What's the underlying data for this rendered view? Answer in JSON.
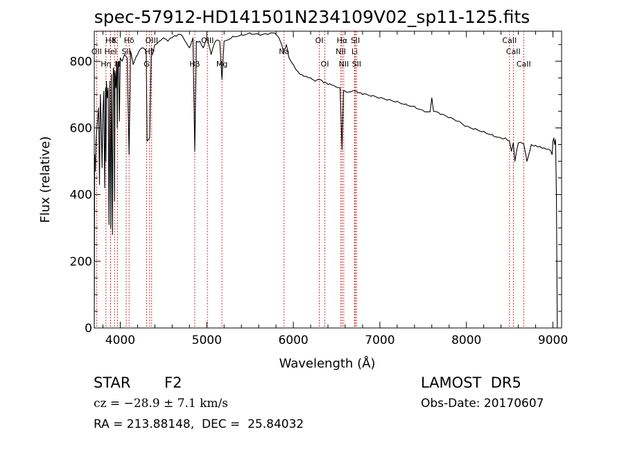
{
  "chart_data": {
    "type": "line",
    "title": "spec-57912-HD141501N234109V02_sp11-125.fits",
    "xlabel": "Wavelength (Å)",
    "ylabel": "Flux (relative)",
    "xlim": [
      3700,
      9100
    ],
    "ylim": [
      0,
      890
    ],
    "xticks": [
      4000,
      5000,
      6000,
      7000,
      8000,
      9000
    ],
    "yticks": [
      0,
      200,
      400,
      600,
      800
    ],
    "grid": false,
    "series": [
      {
        "line_color": "#000000",
        "x": [
          3700,
          3705,
          3712,
          3720,
          3730,
          3740,
          3750,
          3760,
          3770,
          3780,
          3790,
          3800,
          3810,
          3820,
          3830,
          3835,
          3840,
          3850,
          3860,
          3870,
          3880,
          3890,
          3900,
          3910,
          3920,
          3930,
          3934,
          3940,
          3950,
          3960,
          3965,
          3970,
          3980,
          3990,
          4000,
          4020,
          4050,
          4080,
          4102,
          4120,
          4150,
          4200,
          4250,
          4300,
          4310,
          4340,
          4360,
          4380,
          4400,
          4450,
          4500,
          4550,
          4600,
          4650,
          4700,
          4750,
          4800,
          4840,
          4861,
          4880,
          4920,
          4960,
          5000,
          5050,
          5100,
          5150,
          5175,
          5200,
          5300,
          5400,
          5500,
          5600,
          5700,
          5750,
          5800,
          5850,
          5890,
          5920,
          5950,
          6000,
          6050,
          6100,
          6150,
          6200,
          6250,
          6300,
          6350,
          6400,
          6450,
          6500,
          6540,
          6563,
          6580,
          6600,
          6650,
          6700,
          6750,
          6800,
          6900,
          7000,
          7100,
          7200,
          7300,
          7400,
          7500,
          7580,
          7600,
          7620,
          7700,
          7800,
          7900,
          8000,
          8100,
          8200,
          8300,
          8400,
          8450,
          8498,
          8520,
          8542,
          8560,
          8600,
          8662,
          8700,
          8750,
          8800,
          8850,
          8900,
          8950,
          8970,
          8990,
          9000,
          9010,
          9020,
          9030,
          9040,
          9050
        ],
        "y": [
          10,
          520,
          470,
          560,
          600,
          630,
          660,
          430,
          700,
          620,
          480,
          650,
          710,
          420,
          720,
          500,
          740,
          690,
          720,
          310,
          740,
          300,
          760,
          280,
          780,
          760,
          380,
          770,
          720,
          800,
          600,
          780,
          800,
          620,
          810,
          800,
          820,
          810,
          520,
          830,
          790,
          820,
          840,
          830,
          560,
          570,
          840,
          830,
          850,
          860,
          870,
          860,
          870,
          875,
          880,
          860,
          840,
          870,
          530,
          860,
          860,
          840,
          870,
          820,
          860,
          860,
          745,
          860,
          875,
          880,
          885,
          880,
          880,
          885,
          880,
          860,
          825,
          850,
          810,
          790,
          770,
          760,
          755,
          750,
          740,
          745,
          735,
          730,
          728,
          722,
          720,
          535,
          712,
          710,
          708,
          712,
          705,
          700,
          695,
          690,
          685,
          680,
          672,
          665,
          652,
          648,
          690,
          650,
          640,
          630,
          620,
          605,
          598,
          590,
          580,
          570,
          570,
          560,
          530,
          555,
          500,
          555,
          552,
          500,
          550,
          548,
          545,
          540,
          536,
          533,
          520,
          560,
          570,
          550,
          565,
          400,
          0
        ]
      }
    ],
    "line_annotations": [
      {
        "label": "Hδ",
        "x": 3889,
        "row": 1
      },
      {
        "label": "OII",
        "x": 3727,
        "row": 2
      },
      {
        "label": "Hη",
        "x": 3835,
        "row": 3
      },
      {
        "label": "K",
        "x": 3934,
        "row": 1
      },
      {
        "label": "HeI",
        "x": 3889,
        "row": 2
      },
      {
        "label": "H",
        "x": 3969,
        "row": 3
      },
      {
        "label": "SII",
        "x": 4069,
        "row": 2
      },
      {
        "label": "Hδ",
        "x": 4102,
        "row": 1
      },
      {
        "label": "OIII",
        "x": 4363,
        "row": 1
      },
      {
        "label": "Hγ",
        "x": 4340,
        "row": 2
      },
      {
        "label": "G",
        "x": 4304,
        "row": 3
      },
      {
        "label": "OIII",
        "x": 5007,
        "row": 1
      },
      {
        "label": "Hβ",
        "x": 4861,
        "row": 3
      },
      {
        "label": "Mg",
        "x": 5175,
        "row": 3
      },
      {
        "label": "Na",
        "x": 5893,
        "row": 2
      },
      {
        "label": "OI",
        "x": 6300,
        "row": 1
      },
      {
        "label": "OI",
        "x": 6364,
        "row": 3
      },
      {
        "label": "Hα",
        "x": 6563,
        "row": 1
      },
      {
        "label": "NII",
        "x": 6548,
        "row": 2
      },
      {
        "label": "NII",
        "x": 6583,
        "row": 3
      },
      {
        "label": "SII",
        "x": 6717,
        "row": 1
      },
      {
        "label": "Li",
        "x": 6708,
        "row": 2
      },
      {
        "label": "SII",
        "x": 6731,
        "row": 3
      },
      {
        "label": "CaII",
        "x": 8498,
        "row": 1
      },
      {
        "label": "CaII",
        "x": 8542,
        "row": 2
      },
      {
        "label": "CaII",
        "x": 8662,
        "row": 3
      }
    ]
  },
  "footer": {
    "object_type": "STAR",
    "spectral_class": "F2",
    "survey": "LAMOST  DR5",
    "redshift_text": "cz = −28.9 ± 7.1 km/s",
    "obs_date": "Obs-Date: 20170607",
    "coords": "RA = 213.88148,  DEC =  25.84032"
  },
  "colors": {
    "line": "#000000",
    "marker_lines": "#cc0000",
    "background": "#ffffff"
  }
}
